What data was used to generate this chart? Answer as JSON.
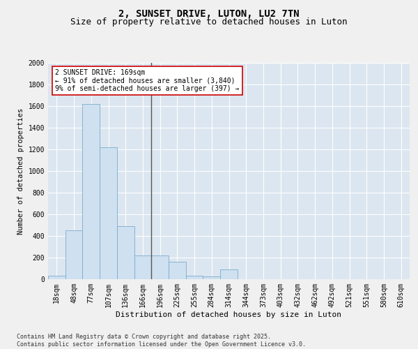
{
  "title": "2, SUNSET DRIVE, LUTON, LU2 7TN",
  "subtitle": "Size of property relative to detached houses in Luton",
  "xlabel": "Distribution of detached houses by size in Luton",
  "ylabel": "Number of detached properties",
  "categories": [
    "18sqm",
    "48sqm",
    "77sqm",
    "107sqm",
    "136sqm",
    "166sqm",
    "196sqm",
    "225sqm",
    "255sqm",
    "284sqm",
    "314sqm",
    "344sqm",
    "373sqm",
    "403sqm",
    "432sqm",
    "462sqm",
    "492sqm",
    "521sqm",
    "551sqm",
    "580sqm",
    "610sqm"
  ],
  "values": [
    30,
    450,
    1620,
    1220,
    490,
    220,
    220,
    160,
    30,
    25,
    90,
    0,
    0,
    0,
    0,
    0,
    0,
    0,
    0,
    0,
    0
  ],
  "bar_color": "#cfe0f0",
  "bar_edge_color": "#7aadcc",
  "property_line_index": 5.5,
  "annotation_text": "2 SUNSET DRIVE: 169sqm\n← 91% of detached houses are smaller (3,840)\n9% of semi-detached houses are larger (397) →",
  "annotation_box_facecolor": "#ffffff",
  "annotation_box_edgecolor": "#cc0000",
  "ylim": [
    0,
    2000
  ],
  "yticks": [
    0,
    200,
    400,
    600,
    800,
    1000,
    1200,
    1400,
    1600,
    1800,
    2000
  ],
  "plot_bg_color": "#dce6f0",
  "figure_bg_color": "#f0f0f0",
  "grid_color": "#ffffff",
  "footer_text": "Contains HM Land Registry data © Crown copyright and database right 2025.\nContains public sector information licensed under the Open Government Licence v3.0.",
  "title_fontsize": 10,
  "subtitle_fontsize": 9,
  "xlabel_fontsize": 8,
  "ylabel_fontsize": 7.5,
  "tick_fontsize": 7,
  "annotation_fontsize": 7,
  "footer_fontsize": 6
}
